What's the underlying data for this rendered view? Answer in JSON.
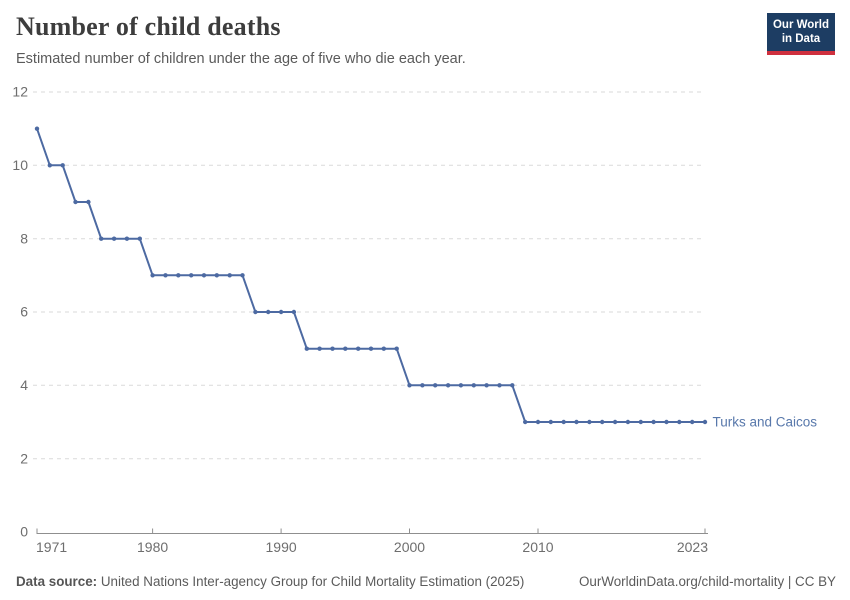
{
  "header": {
    "title": "Number of child deaths",
    "subtitle": "Estimated number of children under the age of five who die each year."
  },
  "logo": {
    "line1": "Our World",
    "line2": "in Data",
    "bg_color": "#1d3d63",
    "bar_color": "#cf303e"
  },
  "chart_data": {
    "type": "line",
    "title": "Number of child deaths",
    "subtitle": "Estimated number of children under the age of five who die each year.",
    "xlabel": "",
    "ylabel": "",
    "xlim": [
      1971,
      2023
    ],
    "ylim": [
      0,
      12
    ],
    "x_ticks": [
      1971,
      1980,
      1990,
      2000,
      2010,
      2023
    ],
    "y_ticks": [
      0,
      2,
      4,
      6,
      8,
      10,
      12
    ],
    "grid": "horizontal-dashed",
    "legend_position": "end-of-line-label",
    "series": [
      {
        "name": "Turks and Caicos",
        "color": "#4d6aa2",
        "years": [
          1971,
          1972,
          1973,
          1974,
          1975,
          1976,
          1977,
          1978,
          1979,
          1980,
          1981,
          1982,
          1983,
          1984,
          1985,
          1986,
          1987,
          1988,
          1989,
          1990,
          1991,
          1992,
          1993,
          1994,
          1995,
          1996,
          1997,
          1998,
          1999,
          2000,
          2001,
          2002,
          2003,
          2004,
          2005,
          2006,
          2007,
          2008,
          2009,
          2010,
          2011,
          2012,
          2013,
          2014,
          2015,
          2016,
          2017,
          2018,
          2019,
          2020,
          2021,
          2022,
          2023
        ],
        "values": [
          11,
          10,
          10,
          9,
          9,
          8,
          8,
          8,
          8,
          7,
          7,
          7,
          7,
          7,
          7,
          7,
          7,
          6,
          6,
          6,
          6,
          5,
          5,
          5,
          5,
          5,
          5,
          5,
          5,
          4,
          4,
          4,
          4,
          4,
          4,
          4,
          4,
          4,
          3,
          3,
          3,
          3,
          3,
          3,
          3,
          3,
          3,
          3,
          3,
          3,
          3,
          3,
          3
        ]
      }
    ]
  },
  "colors": {
    "line": "#4d6aa2",
    "series_label": "#5878ab",
    "grid": "#dadada",
    "axis": "#8f8f8f",
    "tick_label": "#6e6e6e",
    "title": "#3d3d3d",
    "subtitle": "#5a5a5a",
    "footer": "#5b5b5b"
  },
  "footer": {
    "source_label": "Data source:",
    "source_text": "United Nations Inter-agency Group for Child Mortality Estimation (2025)",
    "attribution": "OurWorldinData.org/child-mortality | CC BY"
  }
}
